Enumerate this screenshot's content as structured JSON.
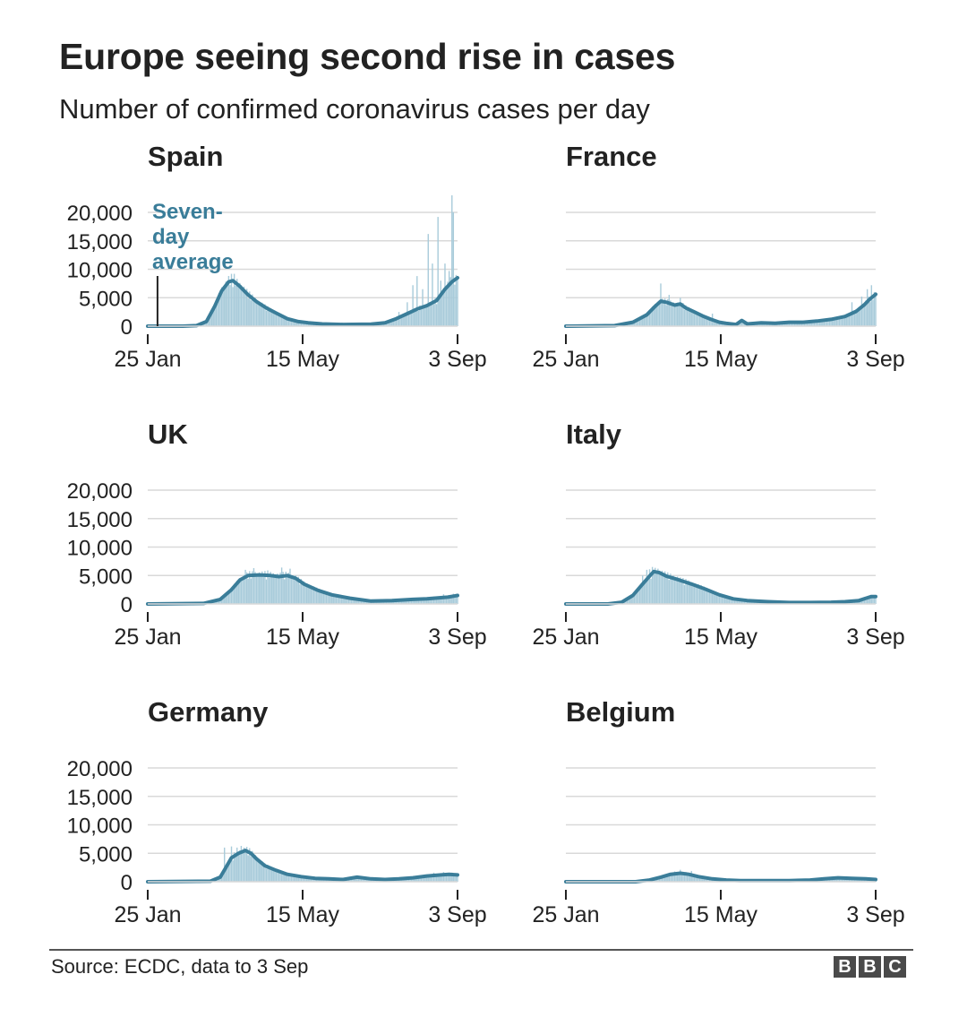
{
  "title": "Europe seeing second rise in cases",
  "subtitle": "Number of confirmed coronavirus cases per day",
  "source": "Source: ECDC, data to 3 Sep",
  "logo_letters": [
    "B",
    "B",
    "C"
  ],
  "colors": {
    "line": "#3a7d99",
    "bars": "#a8cbda",
    "grid": "#d9d9d9",
    "axis": "#222222",
    "annotation": "#3a7d99"
  },
  "annotation": {
    "lines": [
      "Seven-",
      "day",
      "average"
    ],
    "chart": "Spain",
    "marks_date": "2020-02-01"
  },
  "chart_data": [
    {
      "type": "line+bar",
      "title": "Spain",
      "xlim": [
        "25 Jan",
        "3 Sep"
      ],
      "ylim": [
        0,
        20000
      ],
      "yticks": [
        0,
        5000,
        10000,
        15000,
        20000
      ],
      "ytick_labels": [
        "0",
        "5,000",
        "10,000",
        "15,000",
        "20,000"
      ],
      "xticks": [
        "25 Jan",
        "15 May",
        "3 Sep"
      ],
      "xtick_days": [
        0,
        111,
        222
      ],
      "series": [
        {
          "name": "Seven-day average",
          "points": [
            [
              0,
              0
            ],
            [
              25,
              0
            ],
            [
              35,
              100
            ],
            [
              42,
              800
            ],
            [
              48,
              3500
            ],
            [
              53,
              6200
            ],
            [
              58,
              7800
            ],
            [
              61,
              8000
            ],
            [
              66,
              7000
            ],
            [
              72,
              5500
            ],
            [
              78,
              4300
            ],
            [
              85,
              3200
            ],
            [
              92,
              2300
            ],
            [
              100,
              1300
            ],
            [
              108,
              800
            ],
            [
              115,
              600
            ],
            [
              125,
              400
            ],
            [
              140,
              300
            ],
            [
              160,
              350
            ],
            [
              170,
              600
            ],
            [
              178,
              1300
            ],
            [
              186,
              2200
            ],
            [
              193,
              3000
            ],
            [
              200,
              3600
            ],
            [
              207,
              4500
            ],
            [
              213,
              6500
            ],
            [
              218,
              7800
            ],
            [
              222,
              8500
            ]
          ]
        }
      ],
      "daily_peaks": [
        [
          60,
          9200
        ],
        [
          62,
          9200
        ],
        [
          180,
          2500
        ],
        [
          186,
          4200
        ],
        [
          190,
          7200
        ],
        [
          193,
          8800
        ],
        [
          197,
          6500
        ],
        [
          201,
          16200
        ],
        [
          204,
          11000
        ],
        [
          208,
          19200
        ],
        [
          210,
          8000
        ],
        [
          213,
          11000
        ],
        [
          216,
          9700
        ],
        [
          218,
          23000
        ],
        [
          219,
          20000
        ],
        [
          221,
          9000
        ]
      ]
    },
    {
      "type": "line+bar",
      "title": "France",
      "xlim": [
        "25 Jan",
        "3 Sep"
      ],
      "ylim": [
        0,
        20000
      ],
      "yticks": [
        0,
        5000,
        10000,
        15000,
        20000
      ],
      "ytick_labels": [
        "0",
        "5,000",
        "10,000",
        "15,000",
        "20,000"
      ],
      "xticks": [
        "25 Jan",
        "15 May",
        "3 Sep"
      ],
      "xtick_days": [
        0,
        111,
        222
      ],
      "series": [
        {
          "name": "Seven-day average",
          "points": [
            [
              0,
              0
            ],
            [
              35,
              100
            ],
            [
              48,
              700
            ],
            [
              58,
              2000
            ],
            [
              64,
              3500
            ],
            [
              68,
              4400
            ],
            [
              72,
              4200
            ],
            [
              78,
              3700
            ],
            [
              82,
              3900
            ],
            [
              86,
              3200
            ],
            [
              92,
              2500
            ],
            [
              98,
              1800
            ],
            [
              104,
              1200
            ],
            [
              110,
              700
            ],
            [
              115,
              500
            ],
            [
              122,
              300
            ],
            [
              126,
              1000
            ],
            [
              130,
              400
            ],
            [
              140,
              600
            ],
            [
              150,
              500
            ],
            [
              160,
              700
            ],
            [
              170,
              700
            ],
            [
              180,
              900
            ],
            [
              190,
              1200
            ],
            [
              200,
              1700
            ],
            [
              208,
              2600
            ],
            [
              214,
              3800
            ],
            [
              218,
              4800
            ],
            [
              222,
              5600
            ]
          ]
        }
      ],
      "daily_peaks": [
        [
          68,
          7500
        ],
        [
          74,
          5500
        ],
        [
          82,
          5000
        ],
        [
          105,
          2200
        ],
        [
          205,
          4200
        ],
        [
          212,
          5200
        ],
        [
          216,
          6500
        ],
        [
          219,
          7200
        ],
        [
          221,
          6000
        ]
      ]
    },
    {
      "type": "line+bar",
      "title": "UK",
      "xlim": [
        "25 Jan",
        "3 Sep"
      ],
      "ylim": [
        0,
        20000
      ],
      "yticks": [
        0,
        5000,
        10000,
        15000,
        20000
      ],
      "ytick_labels": [
        "0",
        "5,000",
        "10,000",
        "15,000",
        "20,000"
      ],
      "xticks": [
        "25 Jan",
        "15 May",
        "3 Sep"
      ],
      "xtick_days": [
        0,
        111,
        222
      ],
      "series": [
        {
          "name": "Seven-day average",
          "points": [
            [
              0,
              0
            ],
            [
              40,
              100
            ],
            [
              52,
              800
            ],
            [
              60,
              2500
            ],
            [
              66,
              4200
            ],
            [
              72,
              5000
            ],
            [
              80,
              5100
            ],
            [
              88,
              5000
            ],
            [
              94,
              4800
            ],
            [
              100,
              5000
            ],
            [
              106,
              4500
            ],
            [
              112,
              3500
            ],
            [
              122,
              2400
            ],
            [
              132,
              1600
            ],
            [
              145,
              1000
            ],
            [
              160,
              500
            ],
            [
              175,
              600
            ],
            [
              190,
              800
            ],
            [
              200,
              900
            ],
            [
              210,
              1100
            ],
            [
              215,
              1200
            ],
            [
              222,
              1500
            ]
          ]
        }
      ],
      "daily_peaks": [
        [
          70,
          6000
        ],
        [
          76,
          6300
        ],
        [
          86,
          5900
        ],
        [
          96,
          6400
        ],
        [
          102,
          6200
        ],
        [
          205,
          1300
        ],
        [
          212,
          1700
        ],
        [
          219,
          1800
        ]
      ]
    },
    {
      "type": "line+bar",
      "title": "Italy",
      "xlim": [
        "25 Jan",
        "3 Sep"
      ],
      "ylim": [
        0,
        20000
      ],
      "yticks": [
        0,
        5000,
        10000,
        15000,
        20000
      ],
      "ytick_labels": [
        "0",
        "5,000",
        "10,000",
        "15,000",
        "20,000"
      ],
      "xticks": [
        "25 Jan",
        "15 May",
        "3 Sep"
      ],
      "xtick_days": [
        0,
        111,
        222
      ],
      "series": [
        {
          "name": "Seven-day average",
          "points": [
            [
              0,
              0
            ],
            [
              30,
              0
            ],
            [
              40,
              300
            ],
            [
              48,
              1500
            ],
            [
              55,
              3500
            ],
            [
              60,
              4900
            ],
            [
              63,
              5700
            ],
            [
              67,
              5500
            ],
            [
              72,
              4900
            ],
            [
              80,
              4300
            ],
            [
              90,
              3500
            ],
            [
              100,
              2600
            ],
            [
              110,
              1600
            ],
            [
              120,
              900
            ],
            [
              130,
              600
            ],
            [
              145,
              400
            ],
            [
              160,
              250
            ],
            [
              175,
              250
            ],
            [
              190,
              300
            ],
            [
              200,
              400
            ],
            [
              210,
              600
            ],
            [
              215,
              1000
            ],
            [
              219,
              1300
            ],
            [
              222,
              1300
            ]
          ]
        }
      ],
      "daily_peaks": [
        [
          55,
          5000
        ],
        [
          58,
          6000
        ],
        [
          60,
          6100
        ],
        [
          62,
          6500
        ],
        [
          66,
          6200
        ],
        [
          72,
          5200
        ],
        [
          80,
          4800
        ]
      ]
    },
    {
      "type": "line+bar",
      "title": "Germany",
      "xlim": [
        "25 Jan",
        "3 Sep"
      ],
      "ylim": [
        0,
        20000
      ],
      "yticks": [
        0,
        5000,
        10000,
        15000,
        20000
      ],
      "ytick_labels": [
        "0",
        "5,000",
        "10,000",
        "15,000",
        "20,000"
      ],
      "xticks": [
        "25 Jan",
        "15 May",
        "3 Sep"
      ],
      "xtick_days": [
        0,
        111,
        222
      ],
      "series": [
        {
          "name": "Seven-day average",
          "points": [
            [
              0,
              0
            ],
            [
              45,
              100
            ],
            [
              52,
              800
            ],
            [
              56,
              2500
            ],
            [
              60,
              4200
            ],
            [
              65,
              5000
            ],
            [
              70,
              5500
            ],
            [
              74,
              5000
            ],
            [
              78,
              4000
            ],
            [
              84,
              2800
            ],
            [
              92,
              2000
            ],
            [
              100,
              1300
            ],
            [
              110,
              900
            ],
            [
              120,
              600
            ],
            [
              130,
              500
            ],
            [
              140,
              400
            ],
            [
              150,
              800
            ],
            [
              160,
              500
            ],
            [
              170,
              400
            ],
            [
              180,
              500
            ],
            [
              190,
              700
            ],
            [
              200,
              1000
            ],
            [
              210,
              1200
            ],
            [
              216,
              1300
            ],
            [
              222,
              1200
            ]
          ]
        }
      ],
      "daily_peaks": [
        [
          55,
          6000
        ],
        [
          60,
          6200
        ],
        [
          64,
          6000
        ],
        [
          67,
          6300
        ],
        [
          205,
          1600
        ],
        [
          212,
          1700
        ],
        [
          218,
          1600
        ]
      ]
    },
    {
      "type": "line+bar",
      "title": "Belgium",
      "xlim": [
        "25 Jan",
        "3 Sep"
      ],
      "ylim": [
        0,
        20000
      ],
      "yticks": [
        0,
        5000,
        10000,
        15000,
        20000
      ],
      "ytick_labels": [
        "0",
        "5,000",
        "10,000",
        "15,000",
        "20,000"
      ],
      "xticks": [
        "25 Jan",
        "15 May",
        "3 Sep"
      ],
      "xtick_days": [
        0,
        111,
        222
      ],
      "series": [
        {
          "name": "Seven-day average",
          "points": [
            [
              0,
              0
            ],
            [
              50,
              0
            ],
            [
              60,
              300
            ],
            [
              68,
              800
            ],
            [
              75,
              1300
            ],
            [
              82,
              1500
            ],
            [
              88,
              1300
            ],
            [
              95,
              900
            ],
            [
              105,
              500
            ],
            [
              115,
              300
            ],
            [
              125,
              200
            ],
            [
              140,
              200
            ],
            [
              160,
              200
            ],
            [
              175,
              300
            ],
            [
              185,
              500
            ],
            [
              195,
              700
            ],
            [
              205,
              600
            ],
            [
              215,
              500
            ],
            [
              222,
              400
            ]
          ]
        }
      ],
      "daily_peaks": [
        [
          78,
          1800
        ],
        [
          82,
          2100
        ],
        [
          86,
          1700
        ],
        [
          90,
          1900
        ]
      ]
    }
  ]
}
